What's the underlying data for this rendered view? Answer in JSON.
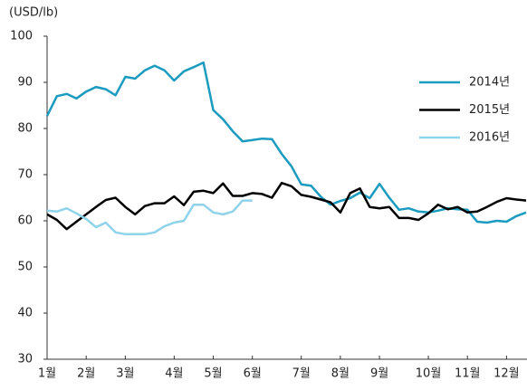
{
  "chart_data": {
    "type": "line",
    "ylabel": "(USD/lb)",
    "categories": [
      "1월",
      null,
      null,
      null,
      "2월",
      null,
      null,
      null,
      "3월",
      null,
      null,
      null,
      null,
      "4월",
      null,
      null,
      null,
      "5월",
      null,
      null,
      null,
      "6월",
      null,
      null,
      null,
      null,
      "7월",
      null,
      null,
      null,
      "8월",
      null,
      null,
      null,
      "9월",
      null,
      null,
      null,
      null,
      "10월",
      null,
      null,
      null,
      "11월",
      null,
      null,
      null,
      "12월",
      null,
      null
    ],
    "series": [
      {
        "name": "2014년",
        "color": "#1a9bbf",
        "values": [
          82.7,
          87,
          87.5,
          86.5,
          88,
          89,
          88.5,
          87.2,
          91.2,
          90.8,
          92.6,
          93.6,
          92.6,
          90.4,
          92.4,
          93.3,
          94.3,
          84,
          82,
          79.4,
          77.2,
          77.5,
          77.8,
          77.7,
          74.5,
          71.8,
          67.9,
          67.6,
          65.2,
          63.5,
          64.3,
          64.9,
          66.1,
          64.9,
          68,
          65,
          62.4,
          62.7,
          62,
          61.8,
          62.2,
          62.7,
          62.5,
          62.4,
          59.8,
          59.6,
          60,
          59.8,
          61,
          61.8
        ]
      },
      {
        "name": "2015년",
        "color": "#000000",
        "values": [
          61.4,
          60.2,
          58.2,
          59.8,
          61.4,
          63,
          64.5,
          65,
          63,
          61.4,
          63.2,
          63.8,
          63.8,
          65.3,
          63.4,
          66.3,
          66.5,
          66,
          68.1,
          65.4,
          65.4,
          66,
          65.8,
          65,
          68.2,
          67.5,
          65.6,
          65.2,
          64.6,
          64,
          61.8,
          66,
          67,
          63,
          62.7,
          63,
          60.6,
          60.6,
          60.2,
          61.6,
          63.5,
          62.5,
          63,
          61.8,
          62,
          63,
          64.1,
          64.9,
          64.6,
          64.4
        ]
      },
      {
        "name": "2016년",
        "color": "#8fd3ea",
        "values": [
          62.2,
          62,
          62.7,
          61.6,
          60.4,
          58.6,
          59.6,
          57.5,
          57.1,
          57.1,
          57.1,
          57.5,
          58.8,
          59.6,
          60,
          63.5,
          63.5,
          61.8,
          61.4,
          62,
          64.4,
          64.4,
          null,
          null,
          null,
          null,
          null,
          null,
          null,
          null,
          null,
          null,
          null,
          null,
          null,
          null,
          null,
          null,
          null,
          null,
          null,
          null,
          null,
          null,
          null,
          null,
          null,
          null,
          null,
          null
        ]
      }
    ],
    "ylim": [
      30,
      100
    ],
    "yticks": [
      30,
      40,
      50,
      60,
      70,
      80,
      90,
      100
    ],
    "grid": false,
    "legend": "right"
  }
}
